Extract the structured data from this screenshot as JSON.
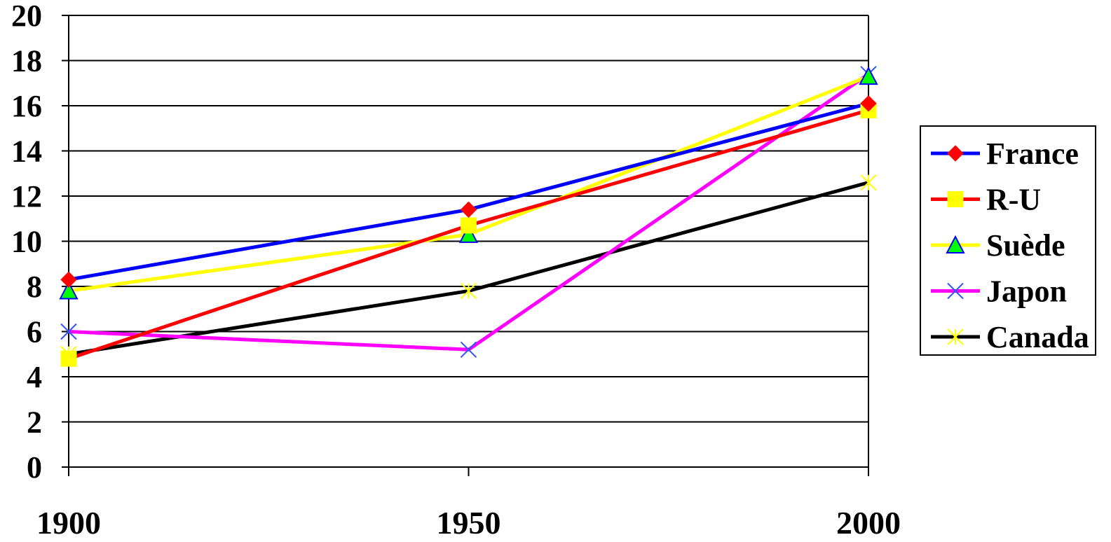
{
  "chart_data": {
    "type": "line",
    "title": "",
    "xlabel": "",
    "ylabel": "",
    "x": [
      "1900",
      "1950",
      "2000"
    ],
    "ylim": [
      0,
      20
    ],
    "yticks": [
      "0",
      "2",
      "4",
      "6",
      "8",
      "10",
      "12",
      "14",
      "16",
      "18",
      "20"
    ],
    "grid": true,
    "legend_position": "right",
    "series": [
      {
        "name": "France",
        "values": [
          8.3,
          11.4,
          16.1
        ],
        "color": "#0000ff",
        "marker": "diamond",
        "marker_color": "#ff0000"
      },
      {
        "name": "R-U",
        "values": [
          4.8,
          10.7,
          15.8
        ],
        "color": "#ff0000",
        "marker": "square",
        "marker_color": "#ffff00"
      },
      {
        "name": "Suède",
        "values": [
          7.8,
          10.3,
          17.3
        ],
        "color": "#ffff00",
        "marker": "triangle",
        "marker_color": "#00ff00"
      },
      {
        "name": "Japon",
        "values": [
          6.0,
          5.2,
          17.4
        ],
        "color": "#ff00ff",
        "marker": "x",
        "marker_color": "#3355ff"
      },
      {
        "name": "Canada",
        "values": [
          5.0,
          7.8,
          12.6
        ],
        "color": "#000000",
        "marker": "star",
        "marker_color": "#ffff00"
      }
    ]
  }
}
